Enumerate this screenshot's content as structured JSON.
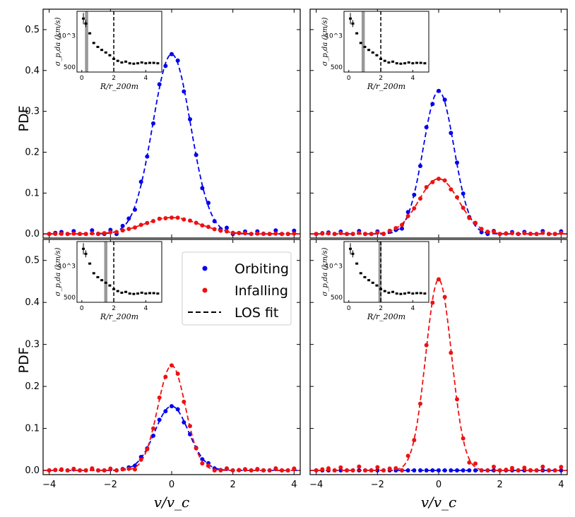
{
  "chart_data": {
    "type": "line",
    "layout": "2x2 grid with inset scatter plots",
    "ylabel": "PDF",
    "xlabel": "v/v_c",
    "xlim": [
      -4.2,
      4.2
    ],
    "ylim": [
      -0.01,
      0.55
    ],
    "xticks": [
      -4,
      -2,
      0,
      2,
      4
    ],
    "yticks": [
      0.0,
      0.1,
      0.2,
      0.3,
      0.4,
      0.5
    ],
    "xtick_labels": [
      "−4",
      "−2",
      "0",
      "2",
      "4"
    ],
    "ytick_labels": [
      "0.0",
      "0.1",
      "0.2",
      "0.3",
      "0.4",
      "0.5"
    ],
    "legend": {
      "placement": "panel 3, top-right",
      "entries": [
        {
          "label": "Orbiting",
          "color": "#0000ee",
          "marker": "dot"
        },
        {
          "label": "Infalling",
          "color": "#ee1111",
          "marker": "dot"
        },
        {
          "label": "LOS fit",
          "color": "#000000",
          "marker": "dashed-line"
        }
      ]
    },
    "colors": {
      "orbiting": "#0000ee",
      "infalling": "#ee1111",
      "axis": "#000000",
      "band": "#999999"
    },
    "panels": [
      {
        "id": "top-left",
        "series": [
          {
            "name": "Orbiting",
            "amplitude": 0.44,
            "sigma": 0.62
          },
          {
            "name": "Infalling",
            "amplitude": 0.04,
            "sigma": 0.9
          }
        ],
        "inset_band": [
          0.2,
          0.4
        ]
      },
      {
        "id": "top-right",
        "series": [
          {
            "name": "Orbiting",
            "amplitude": 0.35,
            "sigma": 0.5
          },
          {
            "name": "Infalling",
            "amplitude": 0.135,
            "sigma": 0.65
          }
        ],
        "inset_band": [
          0.8,
          1.0
        ]
      },
      {
        "id": "bottom-left",
        "series": [
          {
            "name": "Orbiting",
            "amplitude": 0.153,
            "sigma": 0.55
          },
          {
            "name": "Infalling",
            "amplitude": 0.25,
            "sigma": 0.45
          }
        ],
        "inset_band": [
          1.4,
          1.6
        ]
      },
      {
        "id": "bottom-right",
        "series": [
          {
            "name": "Orbiting",
            "amplitude": 0.0,
            "sigma": 0.5
          },
          {
            "name": "Infalling",
            "amplitude": 0.455,
            "sigma": 0.42
          }
        ],
        "inset_band": [
          1.85,
          2.05
        ]
      }
    ],
    "inset": {
      "xlabel": "R/r_200m",
      "ylabel": "σ_p,da (km/s)",
      "xticks": [
        0,
        2,
        4
      ],
      "xtick_labels": [
        "0",
        "2",
        "4"
      ],
      "ytick_labels": [
        "500",
        "10^3"
      ],
      "xlim": [
        -0.3,
        5.0
      ],
      "ylim_log": [
        450,
        1700
      ],
      "vline_x": 2.0,
      "points": [
        {
          "x": 0.1,
          "y": 1450
        },
        {
          "x": 0.25,
          "y": 1300
        },
        {
          "x": 0.5,
          "y": 1050
        },
        {
          "x": 0.75,
          "y": 850
        },
        {
          "x": 1.0,
          "y": 780
        },
        {
          "x": 1.25,
          "y": 730
        },
        {
          "x": 1.5,
          "y": 690
        },
        {
          "x": 1.75,
          "y": 650
        },
        {
          "x": 2.0,
          "y": 600
        },
        {
          "x": 2.25,
          "y": 575
        },
        {
          "x": 2.5,
          "y": 555
        },
        {
          "x": 2.75,
          "y": 565
        },
        {
          "x": 3.0,
          "y": 545
        },
        {
          "x": 3.25,
          "y": 540
        },
        {
          "x": 3.5,
          "y": 545
        },
        {
          "x": 3.75,
          "y": 555
        },
        {
          "x": 4.0,
          "y": 545
        },
        {
          "x": 4.25,
          "y": 550
        },
        {
          "x": 4.5,
          "y": 550
        },
        {
          "x": 4.75,
          "y": 545
        }
      ]
    }
  }
}
